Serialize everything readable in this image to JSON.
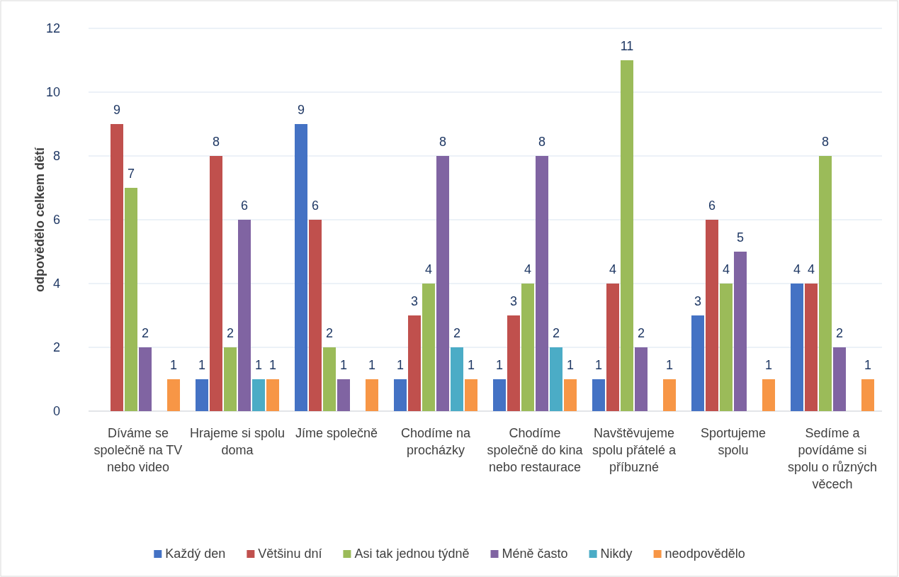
{
  "chart_data": {
    "type": "bar",
    "ylabel": "odpovědělo celkem dětí",
    "categories": [
      "Díváme se společně na TV nebo video",
      "Hrajeme si spolu doma",
      "Jíme společně",
      "Chodíme na procházky",
      "Chodíme společně do kina nebo restaurace",
      "Navštěvujeme spolu přátelé a příbuzné",
      "Sportujeme spolu",
      "Sedíme a povídáme si spolu o různých věcech"
    ],
    "series": [
      {
        "name": "Každý den",
        "color": "#4472c4",
        "values": [
          null,
          1,
          9,
          1,
          1,
          1,
          3,
          4
        ]
      },
      {
        "name": "Většinu dní",
        "color": "#c0504d",
        "values": [
          9,
          8,
          6,
          3,
          3,
          4,
          6,
          4
        ]
      },
      {
        "name": "Asi tak jednou týdně",
        "color": "#9bbb59",
        "values": [
          7,
          2,
          2,
          4,
          4,
          11,
          4,
          8
        ]
      },
      {
        "name": "Méně často",
        "color": "#8064a2",
        "values": [
          2,
          6,
          1,
          8,
          8,
          2,
          5,
          2
        ]
      },
      {
        "name": "Nikdy",
        "color": "#4bacc6",
        "values": [
          null,
          1,
          null,
          2,
          2,
          null,
          null,
          null
        ]
      },
      {
        "name": "neodpovědělo",
        "color": "#f79646",
        "values": [
          1,
          1,
          1,
          1,
          1,
          1,
          1,
          1
        ]
      }
    ],
    "ylim": [
      0,
      12
    ],
    "yticks": [
      0,
      2,
      4,
      6,
      8,
      10,
      12
    ],
    "grid": "y",
    "legend": "bottom",
    "data_labels": true
  }
}
